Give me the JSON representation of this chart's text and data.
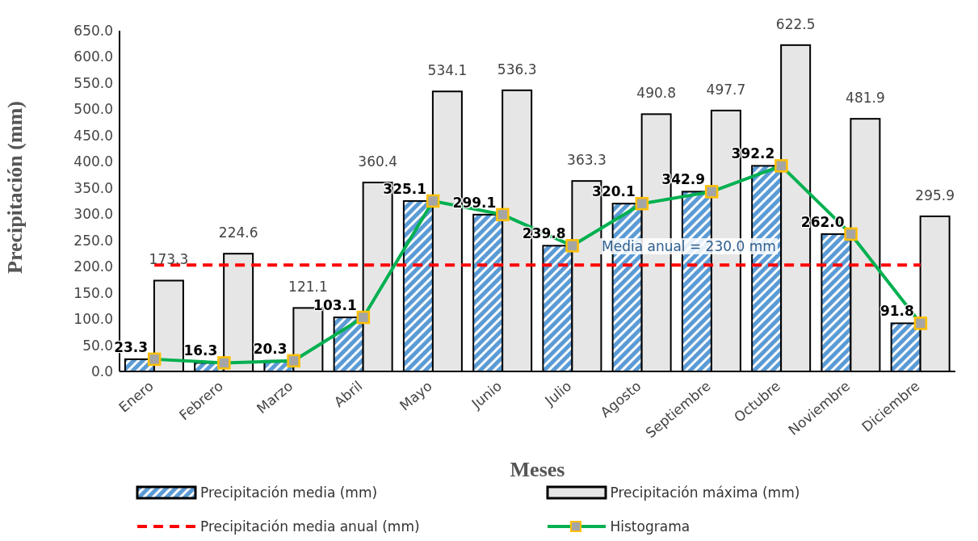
{
  "chart_data": {
    "type": "bar",
    "categories": [
      "Enero",
      "Febrero",
      "Marzo",
      "Abril",
      "Mayo",
      "Junio",
      "Julio",
      "Agosto",
      "Septiembre",
      "Octubre",
      "Noviembre",
      "Diciembre"
    ],
    "series": [
      {
        "name": "Precipitación media (mm)",
        "type": "bar",
        "color": "#5b9bd5",
        "values": [
          23.3,
          16.3,
          20.3,
          103.1,
          325.1,
          299.1,
          239.8,
          320.1,
          342.9,
          392.2,
          262.0,
          91.8
        ],
        "value_labels": [
          "23.3",
          "16.3",
          "20.3",
          "103.1",
          "325.1",
          "299.1",
          "239.8",
          "320.1",
          "342.9",
          "392.2",
          "262.0",
          "91.8"
        ]
      },
      {
        "name": "Precipitación máxima (mm)",
        "type": "bar",
        "color": "#e7e6e6",
        "values": [
          173.3,
          224.6,
          121.1,
          360.4,
          534.1,
          536.3,
          363.3,
          490.8,
          497.7,
          622.5,
          481.9,
          295.9
        ],
        "value_labels": [
          "173.3",
          "224.6",
          "121.1",
          "360.4",
          "534.1",
          "536.3",
          "363.3",
          "490.8",
          "497.7",
          "622.5",
          "481.9",
          "295.9"
        ]
      },
      {
        "name": "Precipitación media anual (mm)",
        "type": "line",
        "color": "#ff0000",
        "line_style": "dashed",
        "marker": "none",
        "values": [
          203,
          203,
          203,
          203,
          203,
          203,
          203,
          203,
          203,
          203,
          203,
          203
        ]
      },
      {
        "name": "Histograma",
        "type": "line",
        "color": "#00b050",
        "line_style": "solid",
        "marker": "square",
        "values": [
          23.3,
          16.3,
          20.3,
          103.1,
          325.1,
          299.1,
          239.8,
          320.1,
          342.9,
          392.2,
          262.0,
          91.8
        ]
      }
    ],
    "xlabel": "Meses",
    "ylabel": "Precipitación  (mm)",
    "ylim": [
      0,
      650
    ],
    "yticks": [
      {
        "value": 0,
        "label": "0.0"
      },
      {
        "value": 50,
        "label": "50.0"
      },
      {
        "value": 100,
        "label": "100.0"
      },
      {
        "value": 150,
        "label": "150.0"
      },
      {
        "value": 200,
        "label": "200.0"
      },
      {
        "value": 250,
        "label": "250.0"
      },
      {
        "value": 300,
        "label": "300.0"
      },
      {
        "value": 350,
        "label": "350.0"
      },
      {
        "value": 400,
        "label": "400.0"
      },
      {
        "value": 450,
        "label": "450.0"
      },
      {
        "value": 500,
        "label": "500.0"
      },
      {
        "value": 550,
        "label": "550.0"
      },
      {
        "value": 600,
        "label": "600.0"
      },
      {
        "value": 650,
        "label": "650.0"
      }
    ],
    "grid": false,
    "legend": "bottom",
    "annotations": [
      "Media anual = 230.0 mm"
    ]
  }
}
